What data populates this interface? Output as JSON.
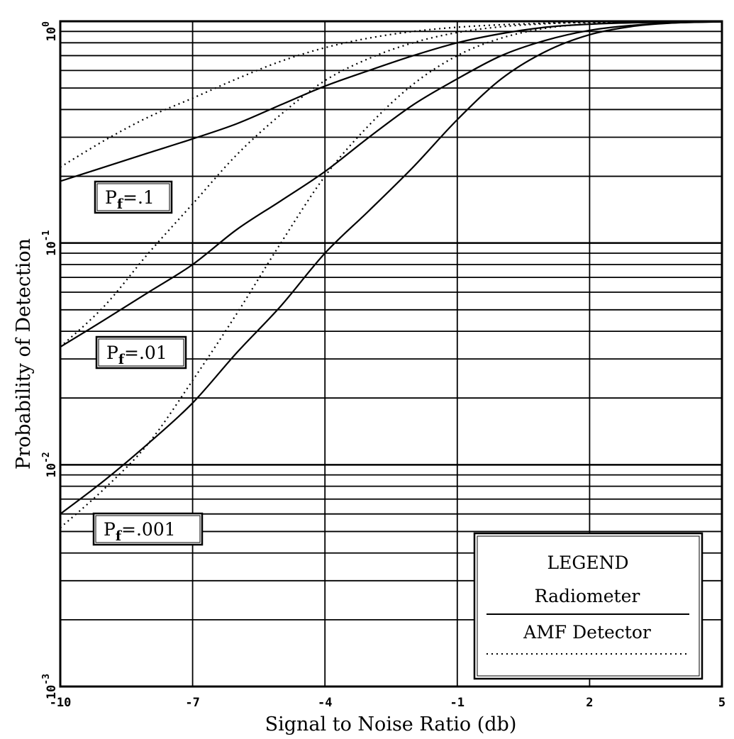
{
  "chart_data": {
    "type": "line",
    "title": "",
    "xlabel": "Signal to Noise Ratio (db)",
    "ylabel": "Probability of Detection",
    "x_scale": "linear",
    "y_scale": "log",
    "xlim": [
      -10,
      5
    ],
    "ylim": [
      0.001,
      1
    ],
    "grid": true,
    "x_ticks": [
      "-10",
      "-7",
      "-4",
      "-1",
      "2",
      "5"
    ],
    "y_ticks": [
      {
        "base": "10",
        "exp": "-3"
      },
      {
        "base": "10",
        "exp": "-2"
      },
      {
        "base": "10",
        "exp": "-1"
      },
      {
        "base": "10",
        "exp": "0"
      }
    ],
    "legend": {
      "title": "LEGEND",
      "position": "bottom-right",
      "entries": [
        {
          "label": "Radiometer",
          "style": "solid"
        },
        {
          "label": "AMF Detector",
          "style": "dotted"
        }
      ]
    },
    "annotations": [
      {
        "prefix": "P",
        "sub": "f",
        "value": "=.1"
      },
      {
        "prefix": "P",
        "sub": "f",
        "value": "=.01"
      },
      {
        "prefix": "P",
        "sub": "f",
        "value": "=.001"
      }
    ],
    "series": [
      {
        "style": "solid",
        "group": 0,
        "x": [
          -10,
          -9,
          -8,
          -7,
          -6,
          -5,
          -4,
          -3,
          -2,
          -1,
          0,
          1,
          2,
          3,
          4,
          5
        ],
        "y": [
          0.19,
          0.22,
          0.255,
          0.295,
          0.345,
          0.42,
          0.51,
          0.6,
          0.7,
          0.8,
          0.88,
          0.94,
          0.97,
          0.985,
          0.99,
          0.995
        ]
      },
      {
        "style": "solid",
        "group": 1,
        "x": [
          -10,
          -9,
          -8,
          -7,
          -6,
          -5,
          -4,
          -3,
          -2,
          -1,
          0,
          1,
          2,
          3,
          4,
          5
        ],
        "y": [
          0.034,
          0.045,
          0.06,
          0.08,
          0.115,
          0.155,
          0.21,
          0.3,
          0.42,
          0.55,
          0.7,
          0.82,
          0.91,
          0.96,
          0.985,
          0.995
        ]
      },
      {
        "style": "solid",
        "group": 2,
        "x": [
          -10,
          -9,
          -8,
          -7,
          -6,
          -5,
          -4,
          -3,
          -2,
          -1,
          0,
          1,
          2,
          3,
          4,
          5
        ],
        "y": [
          0.006,
          0.0085,
          0.0125,
          0.019,
          0.032,
          0.052,
          0.09,
          0.14,
          0.22,
          0.36,
          0.55,
          0.73,
          0.87,
          0.95,
          0.985,
          0.995
        ]
      },
      {
        "style": "dotted",
        "group": 0,
        "x": [
          -10,
          -9,
          -8,
          -7,
          -6,
          -5,
          -4,
          -3,
          -2,
          -1,
          0,
          1,
          2,
          3,
          4,
          5
        ],
        "y": [
          0.22,
          0.29,
          0.37,
          0.45,
          0.55,
          0.66,
          0.76,
          0.84,
          0.9,
          0.94,
          0.965,
          0.98,
          0.99,
          0.993,
          0.995,
          0.997
        ]
      },
      {
        "style": "dotted",
        "group": 1,
        "x": [
          -10,
          -9,
          -8,
          -7,
          -6,
          -5,
          -4,
          -3,
          -2,
          -1,
          0,
          1,
          2,
          3,
          4,
          5
        ],
        "y": [
          0.034,
          0.052,
          0.09,
          0.15,
          0.25,
          0.38,
          0.54,
          0.68,
          0.8,
          0.89,
          0.945,
          0.975,
          0.99,
          0.993,
          0.995,
          0.997
        ]
      },
      {
        "style": "dotted",
        "group": 2,
        "x": [
          -10,
          -9,
          -8,
          -7,
          -6,
          -5,
          -4,
          -3,
          -2,
          -1,
          0,
          1,
          2,
          3,
          4,
          5
        ],
        "y": [
          0.0052,
          0.0078,
          0.0125,
          0.024,
          0.048,
          0.1,
          0.2,
          0.34,
          0.52,
          0.7,
          0.84,
          0.93,
          0.975,
          0.99,
          0.995,
          0.997
        ]
      }
    ]
  }
}
